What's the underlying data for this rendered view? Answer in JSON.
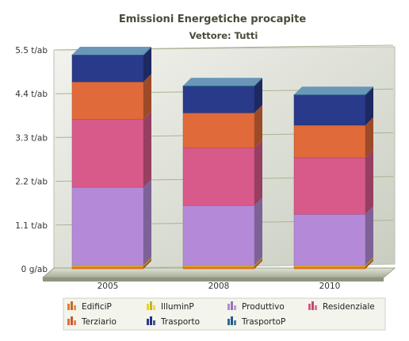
{
  "chart_data": {
    "type": "bar",
    "stacked": true,
    "three_d": true,
    "title": "Emissioni Energetiche procapite",
    "subtitle": "Vettore: Tutti",
    "xlabel": "",
    "ylabel": "",
    "categories": [
      "2005",
      "2008",
      "2010"
    ],
    "y_ticks": [
      {
        "value": 0,
        "label": "0 g/ab"
      },
      {
        "value": 1.1,
        "label": "1.1 t/ab"
      },
      {
        "value": 2.2,
        "label": "2.2 t/ab"
      },
      {
        "value": 3.3,
        "label": "3.3 t/ab"
      },
      {
        "value": 4.4,
        "label": "4.4 t/ab"
      },
      {
        "value": 5.5,
        "label": "5.5 t/ab"
      }
    ],
    "ylim": [
      0,
      5.5
    ],
    "grid": true,
    "legend_position": "bottom",
    "series": [
      {
        "name": "EdificiP",
        "color": "#e87a2a",
        "values": [
          0.06,
          0.06,
          0.06
        ]
      },
      {
        "name": "IlluminP",
        "color": "#e8d42a",
        "values": [
          0.03,
          0.03,
          0.03
        ]
      },
      {
        "name": "Produttivo",
        "color": "#b48ad8",
        "values": [
          1.96,
          1.5,
          1.28
        ]
      },
      {
        "name": "Residenziale",
        "color": "#d85a8a",
        "values": [
          1.71,
          1.45,
          1.42
        ]
      },
      {
        "name": "Terziario",
        "color": "#e06a3a",
        "values": [
          0.94,
          0.88,
          0.82
        ]
      },
      {
        "name": "Trasporto",
        "color": "#2a3a8a",
        "values": [
          0.66,
          0.66,
          0.75
        ]
      },
      {
        "name": "TrasportoP",
        "color": "#2a6a9a",
        "values": [
          0.02,
          0.02,
          0.02
        ]
      }
    ]
  }
}
